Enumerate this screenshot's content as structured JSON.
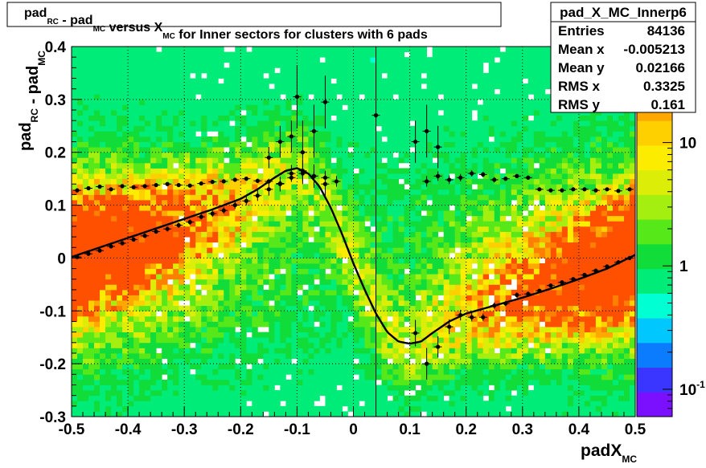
{
  "chart_data": {
    "type": "heatmap",
    "title": {
      "parts": [
        {
          "t": "pad",
          "sub": "RC"
        },
        {
          "t": " - pad",
          "sub": "MC"
        },
        {
          "t": " versus X",
          "sub": "MC"
        },
        {
          "t": " for Inner sectors for clusters with 6 pads"
        }
      ]
    },
    "xlabel": {
      "t": "padX",
      "sub": "MC"
    },
    "ylabel": {
      "parts": [
        {
          "t": "pad",
          "sub": "RC"
        },
        {
          "t": " - pad",
          "sub": "MC"
        }
      ]
    },
    "xlim": [
      -0.5,
      0.5
    ],
    "ylim": [
      -0.3,
      0.4
    ],
    "x_ticks": [
      -0.5,
      -0.4,
      -0.3,
      -0.2,
      -0.1,
      0,
      0.1,
      0.2,
      0.3,
      0.4,
      0.5
    ],
    "x_tick_labels": [
      "-0.5",
      "-0.4",
      "-0.3",
      "-0.2",
      "-0.1",
      "0",
      "0.1",
      "0.2",
      "0.3",
      "0.4",
      "0.5"
    ],
    "y_ticks": [
      -0.3,
      -0.2,
      -0.1,
      0,
      0.1,
      0.2,
      0.3,
      0.4
    ],
    "y_tick_labels": [
      "-0.3",
      "-0.2",
      "-0.1",
      "0",
      "0.1",
      "0.2",
      "0.3",
      "0.4"
    ],
    "grid": true,
    "colorbar": {
      "scale": "log",
      "ticks": [
        {
          "value": 10,
          "label": "10"
        },
        {
          "value": 1,
          "label": "1"
        },
        {
          "value": 0.1,
          "base": "10",
          "exp": "-1"
        }
      ],
      "range": [
        0.06,
        60
      ],
      "colors": [
        "#7a10ff",
        "#3a36ff",
        "#0c7cff",
        "#00c8ff",
        "#00ffd2",
        "#00ec78",
        "#10dc3a",
        "#56e818",
        "#a4ee10",
        "#dcee08",
        "#fcec00",
        "#ffd000",
        "#ffa800",
        "#ff8000",
        "#ff5000"
      ]
    },
    "stats": {
      "name": "pad_X_MC_Innerp6",
      "rows": [
        {
          "label": "Entries",
          "value": "84136"
        },
        {
          "label": "Mean x",
          "value": "-0.005213"
        },
        {
          "label": "Mean y",
          "value": "0.02166"
        },
        {
          "label": "RMS x",
          "value": "0.3325"
        },
        {
          "label": "RMS y",
          "value": "0.161"
        }
      ]
    },
    "series": [
      {
        "kind": "profile-points",
        "x": [
          -0.49,
          -0.47,
          -0.45,
          -0.43,
          -0.41,
          -0.39,
          -0.37,
          -0.35,
          -0.33,
          -0.31,
          -0.29,
          -0.27,
          -0.25,
          -0.23,
          -0.21,
          -0.19,
          -0.17,
          -0.15,
          -0.13,
          -0.11,
          -0.09,
          -0.07,
          -0.05,
          -0.03,
          0.13,
          0.15,
          0.17,
          0.19,
          0.21,
          0.23,
          0.25,
          0.27,
          0.29,
          0.31,
          0.33,
          0.35,
          0.37,
          0.39,
          0.41,
          0.43,
          0.45,
          0.47,
          0.49
        ],
        "y": [
          0.128,
          0.132,
          0.135,
          0.13,
          0.136,
          0.134,
          0.136,
          0.138,
          0.14,
          0.138,
          0.137,
          0.141,
          0.144,
          0.145,
          0.148,
          0.15,
          0.146,
          0.145,
          0.141,
          0.152,
          0.16,
          0.155,
          0.152,
          0.145,
          0.145,
          0.155,
          0.148,
          0.152,
          0.16,
          0.158,
          0.148,
          0.15,
          0.155,
          0.152,
          0.13,
          0.128,
          0.128,
          0.13,
          0.13,
          0.128,
          0.13,
          0.127,
          0.13
        ],
        "yerr": [
          0.003,
          0.003,
          0.003,
          0.003,
          0.003,
          0.003,
          0.003,
          0.003,
          0.003,
          0.003,
          0.003,
          0.003,
          0.003,
          0.004,
          0.004,
          0.004,
          0.004,
          0.005,
          0.005,
          0.006,
          0.007,
          0.008,
          0.009,
          0.01,
          0.01,
          0.009,
          0.008,
          0.007,
          0.006,
          0.005,
          0.005,
          0.004,
          0.004,
          0.004,
          0.003,
          0.003,
          0.003,
          0.003,
          0.003,
          0.003,
          0.003,
          0.003,
          0.003
        ]
      },
      {
        "kind": "profile-points",
        "x": [
          -0.49,
          -0.47,
          -0.45,
          -0.43,
          -0.41,
          -0.39,
          -0.37,
          -0.35,
          -0.33,
          -0.31,
          -0.29,
          -0.27,
          -0.25,
          -0.23,
          -0.21,
          -0.19,
          -0.17,
          -0.15,
          -0.13,
          -0.11,
          -0.09,
          -0.07,
          -0.05,
          0.11,
          0.13,
          0.15,
          0.17,
          0.19,
          0.21,
          0.23,
          0.25,
          0.27,
          0.29,
          0.31,
          0.33,
          0.35,
          0.37,
          0.39,
          0.41,
          0.43,
          0.45,
          0.47,
          0.49
        ],
        "y": [
          0.002,
          0.008,
          0.014,
          0.022,
          0.028,
          0.035,
          0.042,
          0.05,
          0.055,
          0.062,
          0.068,
          0.078,
          0.084,
          0.09,
          0.1,
          0.108,
          0.118,
          0.13,
          0.14,
          0.16,
          0.165,
          0.155,
          0.14,
          -0.142,
          -0.2,
          -0.168,
          -0.13,
          -0.108,
          -0.112,
          -0.112,
          -0.09,
          -0.086,
          -0.07,
          -0.068,
          -0.062,
          -0.052,
          -0.046,
          -0.04,
          -0.032,
          -0.024,
          -0.016,
          -0.008,
          0.0
        ],
        "yerr": [
          0.004,
          0.004,
          0.004,
          0.004,
          0.004,
          0.004,
          0.004,
          0.004,
          0.005,
          0.005,
          0.005,
          0.005,
          0.006,
          0.006,
          0.007,
          0.008,
          0.01,
          0.012,
          0.014,
          0.016,
          0.02,
          0.022,
          0.025,
          0.025,
          0.03,
          0.02,
          0.014,
          0.01,
          0.008,
          0.007,
          0.006,
          0.005,
          0.005,
          0.005,
          0.004,
          0.004,
          0.004,
          0.004,
          0.004,
          0.004,
          0.004,
          0.004,
          0.004
        ]
      },
      {
        "kind": "profile-points",
        "x": [
          -0.15,
          -0.13,
          -0.11,
          -0.1,
          -0.09,
          -0.07,
          -0.05,
          0.04,
          0.11,
          0.13,
          0.15
        ],
        "y": [
          0.19,
          0.22,
          0.23,
          0.305,
          0.2,
          0.24,
          0.295,
          0.27,
          0.22,
          0.24,
          0.21
        ],
        "yerr": [
          0.02,
          0.03,
          0.03,
          0.06,
          0.06,
          0.05,
          0.05,
          0.1,
          0.04,
          0.05,
          0.04
        ]
      },
      {
        "kind": "fit-curve",
        "x": [
          -0.5,
          -0.45,
          -0.4,
          -0.35,
          -0.3,
          -0.25,
          -0.2,
          -0.17,
          -0.14,
          -0.12,
          -0.1,
          -0.08,
          -0.06,
          -0.04,
          -0.02,
          0.0,
          0.02,
          0.04,
          0.06,
          0.08,
          0.1,
          0.12,
          0.14,
          0.17,
          0.2,
          0.25,
          0.3,
          0.35,
          0.4,
          0.45,
          0.5
        ],
        "y": [
          0.002,
          0.02,
          0.038,
          0.056,
          0.074,
          0.092,
          0.112,
          0.13,
          0.152,
          0.165,
          0.17,
          0.16,
          0.135,
          0.095,
          0.045,
          -0.01,
          -0.06,
          -0.105,
          -0.14,
          -0.158,
          -0.162,
          -0.158,
          -0.142,
          -0.12,
          -0.105,
          -0.09,
          -0.075,
          -0.058,
          -0.04,
          -0.02,
          0.006
        ]
      }
    ],
    "vertical_line_x": 0.04
  }
}
